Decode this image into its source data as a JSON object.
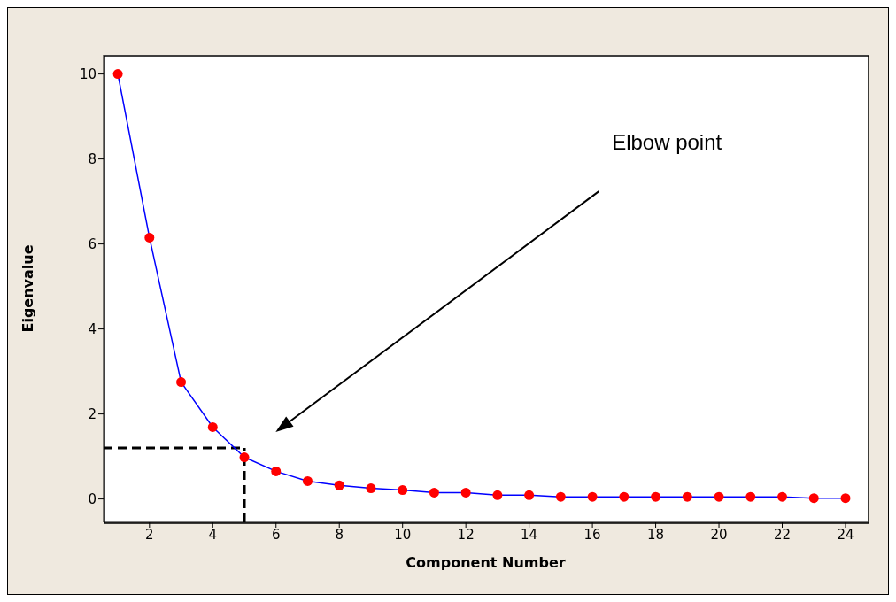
{
  "chart_data": {
    "type": "line",
    "xlabel": "Component Number",
    "ylabel": "Eigenvalue",
    "x": [
      1,
      2,
      3,
      4,
      5,
      6,
      7,
      8,
      9,
      10,
      11,
      12,
      13,
      14,
      15,
      16,
      17,
      18,
      19,
      20,
      21,
      22,
      23,
      24
    ],
    "series": [
      {
        "color": "#0000ff",
        "values": [
          10,
          6.15,
          2.75,
          1.69,
          0.98,
          0.65,
          0.42,
          0.32,
          0.25,
          0.21,
          0.15,
          0.15,
          0.09,
          0.09,
          0.05,
          0.05,
          0.05,
          0.05,
          0.05,
          0.05,
          0.05,
          0.05,
          0.02,
          0.02
        ]
      }
    ],
    "xlim": [
      0.55,
      24.7
    ],
    "xticks": [
      2,
      4,
      6,
      8,
      10,
      12,
      14,
      16,
      18,
      20,
      22,
      24
    ],
    "ylim": [
      -0.55,
      10.45
    ],
    "yticks": [
      0,
      2,
      4,
      6,
      8,
      10
    ],
    "marker": "circle",
    "line_style": "solid",
    "grid": false,
    "legend": false,
    "ref_lines": [
      {
        "axis": "y",
        "value": 1.2,
        "color": "#000000",
        "line_style": "dashed"
      },
      {
        "axis": "x",
        "value": 5,
        "color": "#000000",
        "line_style": "dashed"
      }
    ],
    "annotations": [
      "Elbow point"
    ]
  }
}
